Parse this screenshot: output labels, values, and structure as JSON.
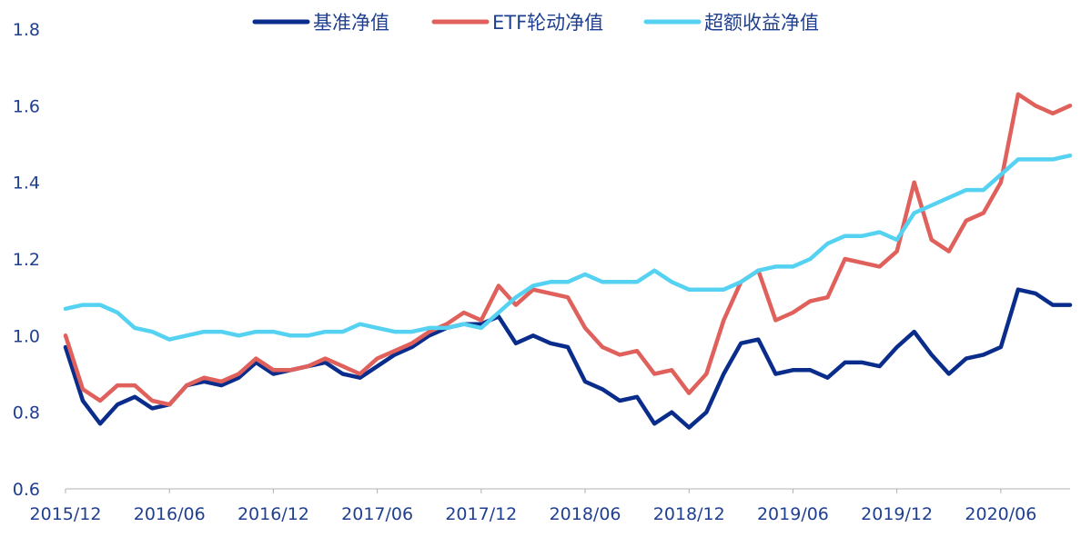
{
  "chart_data": {
    "type": "line",
    "title": "",
    "xlabel": "",
    "ylabel": "",
    "ylim": [
      0.6,
      1.8
    ],
    "y_ticks": [
      "0.6",
      "0.8",
      "1.0",
      "1.2",
      "1.4",
      "1.6",
      "1.8"
    ],
    "x_ticks": [
      "2015/12",
      "2016/06",
      "2016/12",
      "2017/06",
      "2017/12",
      "2018/06",
      "2018/12",
      "2019/06",
      "2019/12",
      "2020/06"
    ],
    "x_range": [
      "2015/12",
      "2020/10"
    ],
    "legend_position": "top-center",
    "grid": false,
    "series": [
      {
        "name": "基准净值",
        "color": "#0a2d8c",
        "values": [
          [
            "2015/12",
            0.97
          ],
          [
            "2016/01",
            0.83
          ],
          [
            "2016/02",
            0.77
          ],
          [
            "2016/03",
            0.82
          ],
          [
            "2016/04",
            0.84
          ],
          [
            "2016/05",
            0.81
          ],
          [
            "2016/06",
            0.82
          ],
          [
            "2016/07",
            0.87
          ],
          [
            "2016/08",
            0.88
          ],
          [
            "2016/09",
            0.87
          ],
          [
            "2016/10",
            0.89
          ],
          [
            "2016/11",
            0.93
          ],
          [
            "2016/12",
            0.9
          ],
          [
            "2017/01",
            0.91
          ],
          [
            "2017/02",
            0.92
          ],
          [
            "2017/03",
            0.93
          ],
          [
            "2017/04",
            0.9
          ],
          [
            "2017/05",
            0.89
          ],
          [
            "2017/06",
            0.92
          ],
          [
            "2017/07",
            0.95
          ],
          [
            "2017/08",
            0.97
          ],
          [
            "2017/09",
            1.0
          ],
          [
            "2017/10",
            1.02
          ],
          [
            "2017/11",
            1.03
          ],
          [
            "2017/12",
            1.03
          ],
          [
            "2018/01",
            1.05
          ],
          [
            "2018/02",
            0.98
          ],
          [
            "2018/03",
            1.0
          ],
          [
            "2018/04",
            0.98
          ],
          [
            "2018/05",
            0.97
          ],
          [
            "2018/06",
            0.88
          ],
          [
            "2018/07",
            0.86
          ],
          [
            "2018/08",
            0.83
          ],
          [
            "2018/09",
            0.84
          ],
          [
            "2018/10",
            0.77
          ],
          [
            "2018/11",
            0.8
          ],
          [
            "2018/12",
            0.76
          ],
          [
            "2019/01",
            0.8
          ],
          [
            "2019/02",
            0.9
          ],
          [
            "2019/03",
            0.98
          ],
          [
            "2019/04",
            0.99
          ],
          [
            "2019/05",
            0.9
          ],
          [
            "2019/06",
            0.91
          ],
          [
            "2019/07",
            0.91
          ],
          [
            "2019/08",
            0.89
          ],
          [
            "2019/09",
            0.93
          ],
          [
            "2019/10",
            0.93
          ],
          [
            "2019/11",
            0.92
          ],
          [
            "2019/12",
            0.97
          ],
          [
            "2020/01",
            1.01
          ],
          [
            "2020/02",
            0.95
          ],
          [
            "2020/03",
            0.9
          ],
          [
            "2020/04",
            0.94
          ],
          [
            "2020/05",
            0.95
          ],
          [
            "2020/06",
            0.97
          ],
          [
            "2020/07",
            1.12
          ],
          [
            "2020/08",
            1.11
          ],
          [
            "2020/09",
            1.08
          ],
          [
            "2020/10",
            1.08
          ]
        ]
      },
      {
        "name": "ETF轮动净值",
        "color": "#e0605c",
        "values": [
          [
            "2015/12",
            1.0
          ],
          [
            "2016/01",
            0.86
          ],
          [
            "2016/02",
            0.83
          ],
          [
            "2016/03",
            0.87
          ],
          [
            "2016/04",
            0.87
          ],
          [
            "2016/05",
            0.83
          ],
          [
            "2016/06",
            0.82
          ],
          [
            "2016/07",
            0.87
          ],
          [
            "2016/08",
            0.89
          ],
          [
            "2016/09",
            0.88
          ],
          [
            "2016/10",
            0.9
          ],
          [
            "2016/11",
            0.94
          ],
          [
            "2016/12",
            0.91
          ],
          [
            "2017/01",
            0.91
          ],
          [
            "2017/02",
            0.92
          ],
          [
            "2017/03",
            0.94
          ],
          [
            "2017/04",
            0.92
          ],
          [
            "2017/05",
            0.9
          ],
          [
            "2017/06",
            0.94
          ],
          [
            "2017/07",
            0.96
          ],
          [
            "2017/08",
            0.98
          ],
          [
            "2017/09",
            1.01
          ],
          [
            "2017/10",
            1.03
          ],
          [
            "2017/11",
            1.06
          ],
          [
            "2017/12",
            1.04
          ],
          [
            "2018/01",
            1.13
          ],
          [
            "2018/02",
            1.08
          ],
          [
            "2018/03",
            1.12
          ],
          [
            "2018/04",
            1.11
          ],
          [
            "2018/05",
            1.1
          ],
          [
            "2018/06",
            1.02
          ],
          [
            "2018/07",
            0.97
          ],
          [
            "2018/08",
            0.95
          ],
          [
            "2018/09",
            0.96
          ],
          [
            "2018/10",
            0.9
          ],
          [
            "2018/11",
            0.91
          ],
          [
            "2018/12",
            0.85
          ],
          [
            "2019/01",
            0.9
          ],
          [
            "2019/02",
            1.04
          ],
          [
            "2019/03",
            1.14
          ],
          [
            "2019/04",
            1.17
          ],
          [
            "2019/05",
            1.04
          ],
          [
            "2019/06",
            1.06
          ],
          [
            "2019/07",
            1.09
          ],
          [
            "2019/08",
            1.1
          ],
          [
            "2019/09",
            1.2
          ],
          [
            "2019/10",
            1.19
          ],
          [
            "2019/11",
            1.18
          ],
          [
            "2019/12",
            1.22
          ],
          [
            "2020/01",
            1.4
          ],
          [
            "2020/02",
            1.25
          ],
          [
            "2020/03",
            1.22
          ],
          [
            "2020/04",
            1.3
          ],
          [
            "2020/05",
            1.32
          ],
          [
            "2020/06",
            1.4
          ],
          [
            "2020/07",
            1.63
          ],
          [
            "2020/08",
            1.6
          ],
          [
            "2020/09",
            1.58
          ],
          [
            "2020/10",
            1.6
          ]
        ]
      },
      {
        "name": "超额收益净值",
        "color": "#55d2f2",
        "values": [
          [
            "2015/12",
            1.07
          ],
          [
            "2016/01",
            1.08
          ],
          [
            "2016/02",
            1.08
          ],
          [
            "2016/03",
            1.06
          ],
          [
            "2016/04",
            1.02
          ],
          [
            "2016/05",
            1.01
          ],
          [
            "2016/06",
            0.99
          ],
          [
            "2016/07",
            1.0
          ],
          [
            "2016/08",
            1.01
          ],
          [
            "2016/09",
            1.01
          ],
          [
            "2016/10",
            1.0
          ],
          [
            "2016/11",
            1.01
          ],
          [
            "2016/12",
            1.01
          ],
          [
            "2017/01",
            1.0
          ],
          [
            "2017/02",
            1.0
          ],
          [
            "2017/03",
            1.01
          ],
          [
            "2017/04",
            1.01
          ],
          [
            "2017/05",
            1.03
          ],
          [
            "2017/06",
            1.02
          ],
          [
            "2017/07",
            1.01
          ],
          [
            "2017/08",
            1.01
          ],
          [
            "2017/09",
            1.02
          ],
          [
            "2017/10",
            1.02
          ],
          [
            "2017/11",
            1.03
          ],
          [
            "2017/12",
            1.02
          ],
          [
            "2018/01",
            1.06
          ],
          [
            "2018/02",
            1.1
          ],
          [
            "2018/03",
            1.13
          ],
          [
            "2018/04",
            1.14
          ],
          [
            "2018/05",
            1.14
          ],
          [
            "2018/06",
            1.16
          ],
          [
            "2018/07",
            1.14
          ],
          [
            "2018/08",
            1.14
          ],
          [
            "2018/09",
            1.14
          ],
          [
            "2018/10",
            1.17
          ],
          [
            "2018/11",
            1.14
          ],
          [
            "2018/12",
            1.12
          ],
          [
            "2019/01",
            1.12
          ],
          [
            "2019/02",
            1.12
          ],
          [
            "2019/03",
            1.14
          ],
          [
            "2019/04",
            1.17
          ],
          [
            "2019/05",
            1.18
          ],
          [
            "2019/06",
            1.18
          ],
          [
            "2019/07",
            1.2
          ],
          [
            "2019/08",
            1.24
          ],
          [
            "2019/09",
            1.26
          ],
          [
            "2019/10",
            1.26
          ],
          [
            "2019/11",
            1.27
          ],
          [
            "2019/12",
            1.25
          ],
          [
            "2020/01",
            1.32
          ],
          [
            "2020/02",
            1.34
          ],
          [
            "2020/03",
            1.36
          ],
          [
            "2020/04",
            1.38
          ],
          [
            "2020/05",
            1.38
          ],
          [
            "2020/06",
            1.42
          ],
          [
            "2020/07",
            1.46
          ],
          [
            "2020/08",
            1.46
          ],
          [
            "2020/09",
            1.46
          ],
          [
            "2020/10",
            1.47
          ]
        ]
      }
    ]
  }
}
